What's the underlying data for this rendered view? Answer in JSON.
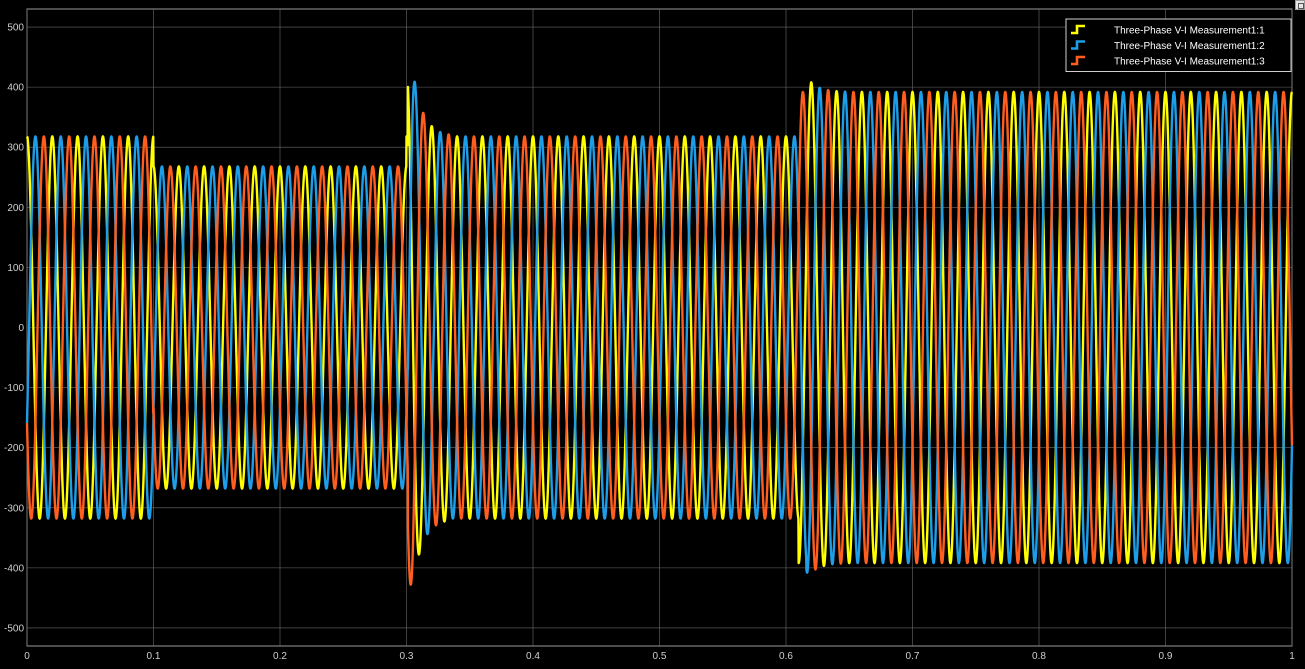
{
  "chart_data": {
    "type": "line",
    "title": "",
    "xlabel": "",
    "ylabel": "",
    "xlim": [
      0,
      1
    ],
    "ylim": [
      -530,
      530
    ],
    "xticks": [
      0,
      0.1,
      0.2,
      0.3,
      0.4,
      0.5,
      0.6,
      0.7,
      0.8,
      0.9,
      1
    ],
    "xtick_labels": [
      "0",
      "0.1",
      "0.2",
      "0.3",
      "0.4",
      "0.5",
      "0.6",
      "0.7",
      "0.8",
      "0.9",
      "1"
    ],
    "yticks": [
      -500,
      -400,
      -300,
      -200,
      -100,
      0,
      100,
      200,
      300,
      400,
      500
    ],
    "ytick_labels": [
      "-500",
      "-400",
      "-300",
      "-200",
      "-100",
      "0",
      "100",
      "200",
      "300",
      "400",
      "500"
    ],
    "grid": true,
    "legend_position": "top-right",
    "background": "#000000",
    "grid_color": "#6b6b6b",
    "frequency_hz": 50,
    "segments": [
      {
        "t_start": 0.0,
        "t_end": 0.1,
        "amplitude": 318
      },
      {
        "t_start": 0.1,
        "t_end": 0.3,
        "amplitude": 268
      },
      {
        "t_start": 0.3,
        "t_end": 0.61,
        "amplitude": 318
      },
      {
        "t_start": 0.61,
        "t_end": 1.0,
        "amplitude": 392
      }
    ],
    "transient_peaks": [
      {
        "t": 0.305,
        "max": 423,
        "min": -428
      },
      {
        "t": 0.62,
        "max": 408,
        "min": -405
      }
    ],
    "series": [
      {
        "name": "Three-Phase V-I Measurement1:1",
        "color": "#ffff00",
        "phase_deg": 90
      },
      {
        "name": "Three-Phase V-I Measurement1:2",
        "color": "#1e9ee8",
        "phase_deg": -30
      },
      {
        "name": "Three-Phase V-I Measurement1:3",
        "color": "#ff5e1f",
        "phase_deg": 210
      }
    ]
  }
}
